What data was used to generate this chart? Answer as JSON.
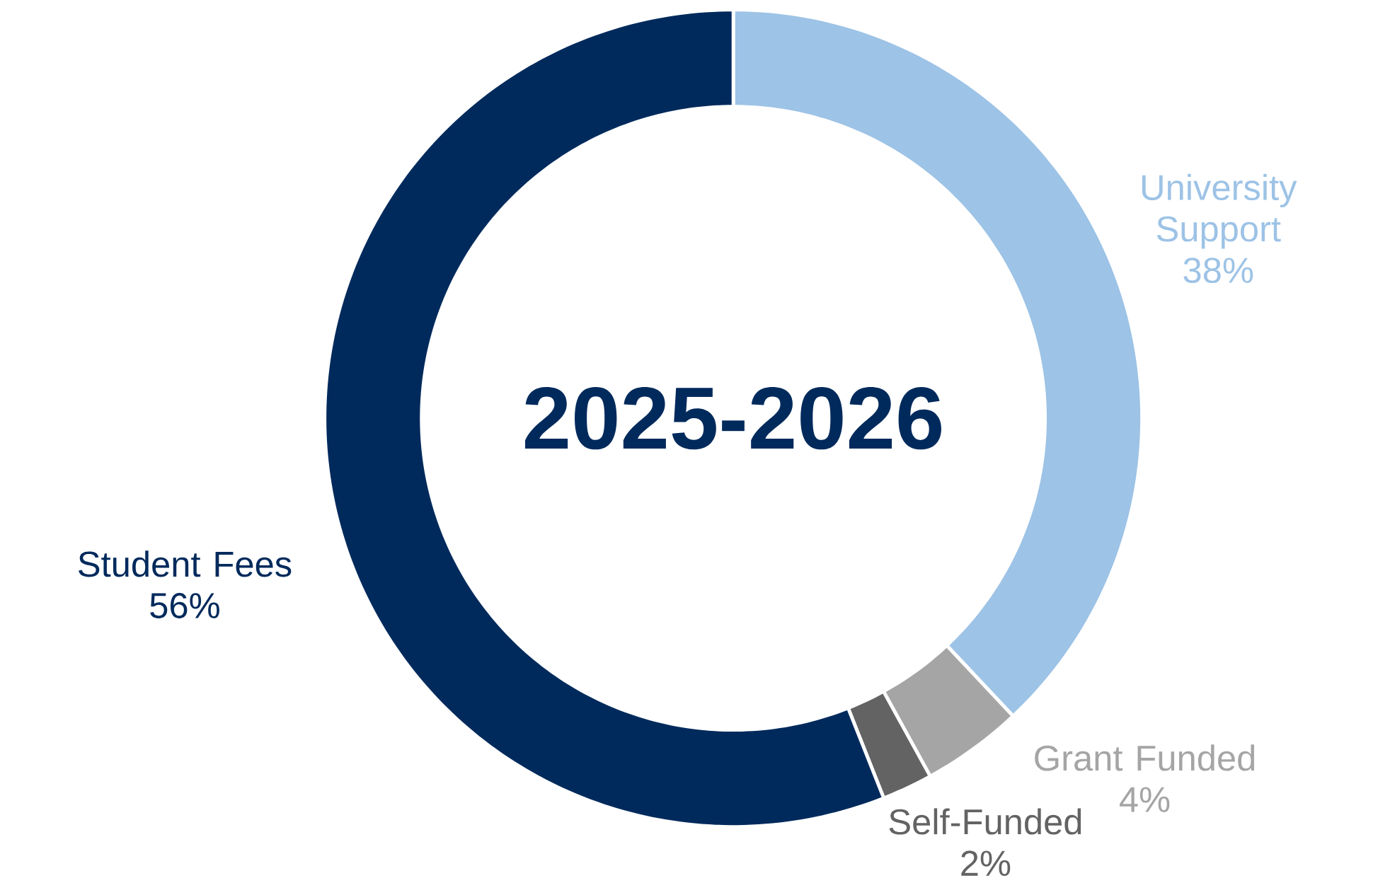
{
  "chart_data": {
    "type": "donut",
    "title": "2025-2026",
    "categories": [
      "University Support",
      "Grant Funded",
      "Self-Funded",
      "Student Fees"
    ],
    "values": [
      38,
      4,
      2,
      56
    ],
    "value_labels": [
      "38%",
      "4%",
      "2%",
      "56%"
    ],
    "colors": [
      "#9dc3e6",
      "#a5a5a5",
      "#636363",
      "#002a5c"
    ]
  }
}
